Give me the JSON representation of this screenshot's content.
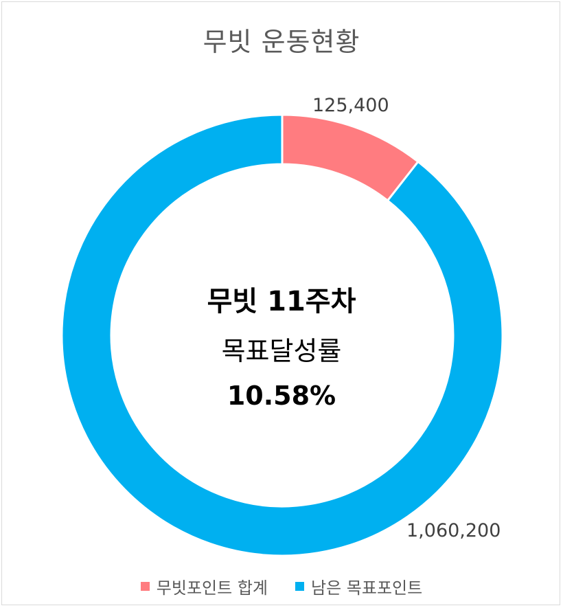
{
  "chart_data": {
    "type": "pie",
    "subtype": "doughnut",
    "title": "무빗 운동현황",
    "categories": [
      "무빗포인트 합계",
      "남은 목표포인트"
    ],
    "values": [
      125400,
      1060200
    ],
    "data_labels": [
      "125,400",
      "1,060,200"
    ],
    "colors": [
      "#ff7c80",
      "#00b0f0"
    ],
    "legend_position": "bottom",
    "center_text": {
      "line1": "무빗 11주차",
      "line2": "목표달성률",
      "line3": "10.58%"
    }
  }
}
